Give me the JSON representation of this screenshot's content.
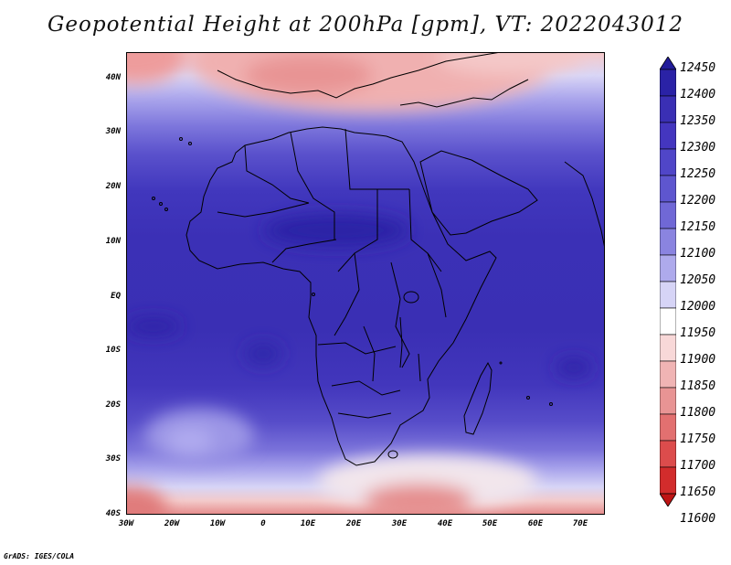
{
  "title": "Geopotential Height at 200hPa [gpm], VT: 2022043012",
  "footer": "GrADS: IGES/COLA",
  "map": {
    "region": "Africa",
    "lon_labels": [
      "30W",
      "20W",
      "10W",
      "0",
      "10E",
      "20E",
      "30E",
      "40E",
      "50E",
      "60E",
      "70E"
    ],
    "lat_labels": [
      "40N",
      "30N",
      "20N",
      "10N",
      "EQ",
      "10S",
      "20S",
      "30S",
      "40S"
    ]
  },
  "colorbar": {
    "units": "gpm",
    "levels": [
      "12450",
      "12400",
      "12350",
      "12300",
      "12250",
      "12200",
      "12150",
      "12100",
      "12050",
      "12000",
      "11950",
      "11900",
      "11850",
      "11800",
      "11750",
      "11700",
      "11650",
      "11600"
    ],
    "colors": [
      "#221c9a",
      "#2a22a6",
      "#3a2fb4",
      "#4436bf",
      "#5046c8",
      "#5e56cf",
      "#7068d6",
      "#8a84e0",
      "#aeaaec",
      "#d6d4f6",
      "#ffffff",
      "#f8d8d8",
      "#f0b4b4",
      "#e89494",
      "#e27070",
      "#dc4c4c",
      "#d22c2c",
      "#be1414"
    ]
  }
}
